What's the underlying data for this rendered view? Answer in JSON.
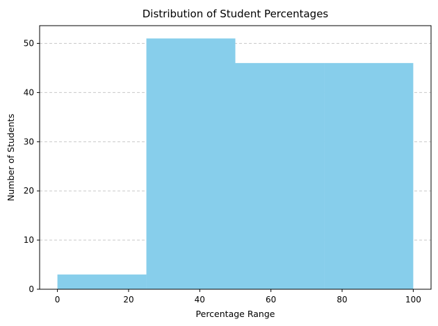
{
  "chart_data": {
    "type": "bar",
    "title": "Distribution of Student Percentages",
    "xlabel": "Percentage Range",
    "ylabel": "Number of Students",
    "bins": [
      {
        "x0": 0,
        "x1": 25,
        "value": 3
      },
      {
        "x0": 25,
        "x1": 50,
        "value": 51
      },
      {
        "x0": 50,
        "x1": 75,
        "value": 46
      },
      {
        "x0": 75,
        "x1": 100,
        "value": 46
      }
    ],
    "xlim": [
      -5,
      105
    ],
    "ylim": [
      0,
      53.6
    ],
    "xticks": [
      0,
      20,
      40,
      60,
      80,
      100
    ],
    "yticks": [
      0,
      10,
      20,
      30,
      40,
      50
    ],
    "grid": "y-dashed",
    "bar_color": "#87ceeb"
  }
}
